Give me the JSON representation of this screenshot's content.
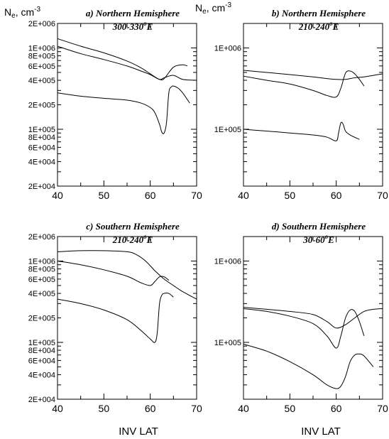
{
  "figure": {
    "ylabel_left": {
      "main": "N",
      "sub": "e",
      "tail": ", cm",
      "sup": "-3"
    },
    "ylabel_right": {
      "main": "N",
      "sub": "e",
      "tail": ", cm",
      "sup": "-3"
    },
    "xlabel_bottom_left": "INV LAT",
    "xlabel_bottom_right": "INV LAT"
  },
  "chart_data": [
    {
      "type": "line",
      "title": {
        "pre": "a) Northern Hemisphere",
        "line2_pre": "300-330",
        "line2_sup": "o",
        "line2_post": "E"
      },
      "xlabel": "",
      "ylabel": "",
      "xlim": [
        40,
        70
      ],
      "ylim": [
        20000,
        2000000
      ],
      "log_y": true,
      "x_ticks": [
        "40",
        "50",
        "60",
        "70"
      ],
      "y_ticks": [
        {
          "v": 2000000,
          "label": "2E+006"
        },
        {
          "v": 1000000,
          "label": "1E+006"
        },
        {
          "v": 800000,
          "label": "8E+005"
        },
        {
          "v": 600000,
          "label": "6E+005"
        },
        {
          "v": 400000,
          "label": "4E+005"
        },
        {
          "v": 200000,
          "label": "2E+005"
        },
        {
          "v": 100000,
          "label": "1E+005"
        },
        {
          "v": 80000,
          "label": "8E+004"
        },
        {
          "v": 60000,
          "label": "6E+004"
        },
        {
          "v": 40000,
          "label": "4E+004"
        },
        {
          "v": 20000,
          "label": "2E+004"
        }
      ],
      "series": [
        {
          "x": [
            40,
            45,
            50,
            55,
            58,
            60,
            62,
            63,
            65,
            67,
            68
          ],
          "y": [
            1300000,
            1050000,
            870000,
            690000,
            570000,
            480000,
            410000,
            420000,
            580000,
            620000,
            600000
          ]
        },
        {
          "x": [
            40,
            45,
            50,
            55,
            58,
            60,
            62,
            63,
            65,
            67,
            70
          ],
          "y": [
            1050000,
            850000,
            720000,
            600000,
            520000,
            470000,
            410000,
            430000,
            460000,
            410000,
            400000
          ]
        },
        {
          "x": [
            40,
            45,
            50,
            55,
            58,
            60,
            61,
            62,
            62.5,
            63,
            63.5,
            64,
            64.5,
            65,
            66,
            67,
            68.5
          ],
          "y": [
            280000,
            255000,
            240000,
            228000,
            210000,
            185000,
            160000,
            115000,
            92000,
            90000,
            120000,
            280000,
            330000,
            340000,
            320000,
            280000,
            210000
          ]
        }
      ]
    },
    {
      "type": "line",
      "title": {
        "pre": "b) Northern Hemisphere",
        "line2_pre": "210-240",
        "line2_sup": "o",
        "line2_post": "E"
      },
      "xlabel": "",
      "ylabel": "",
      "xlim": [
        40,
        70
      ],
      "ylim": [
        20000,
        2000000
      ],
      "log_y": true,
      "x_ticks": [
        "40",
        "50",
        "60",
        "70"
      ],
      "y_ticks": [
        {
          "v": 1000000,
          "label": "1E+006"
        },
        {
          "v": 100000,
          "label": "1E+005"
        }
      ],
      "series": [
        {
          "x": [
            40,
            45,
            50,
            55,
            58,
            60,
            62,
            64,
            66,
            68,
            70
          ],
          "y": [
            530000,
            500000,
            470000,
            440000,
            420000,
            410000,
            410000,
            430000,
            440000,
            460000,
            480000
          ]
        },
        {
          "x": [
            40,
            45,
            50,
            55,
            58,
            60,
            61,
            62,
            63,
            64,
            65,
            66
          ],
          "y": [
            450000,
            400000,
            360000,
            300000,
            260000,
            250000,
            320000,
            490000,
            520000,
            480000,
            410000,
            340000
          ]
        },
        {
          "x": [
            40,
            45,
            50,
            55,
            58,
            60,
            60.5,
            61,
            61.5,
            62,
            63,
            65
          ],
          "y": [
            100000,
            95000,
            90000,
            85000,
            80000,
            72000,
            90000,
            120000,
            115000,
            95000,
            85000,
            75000
          ]
        }
      ]
    },
    {
      "type": "line",
      "title": {
        "pre": "c) Southern Hemisphere",
        "line2_pre": "210-240",
        "line2_sup": "o",
        "line2_post": "E"
      },
      "xlabel": "",
      "ylabel": "",
      "xlim": [
        40,
        70
      ],
      "ylim": [
        20000,
        2000000
      ],
      "log_y": true,
      "x_ticks": [
        "40",
        "50",
        "60",
        "70"
      ],
      "y_ticks": [
        {
          "v": 2000000,
          "label": "2E+006"
        },
        {
          "v": 1000000,
          "label": "1E+006"
        },
        {
          "v": 800000,
          "label": "8E+005"
        },
        {
          "v": 600000,
          "label": "6E+005"
        },
        {
          "v": 400000,
          "label": "4E+005"
        },
        {
          "v": 200000,
          "label": "2E+005"
        },
        {
          "v": 100000,
          "label": "1E+005"
        },
        {
          "v": 80000,
          "label": "8E+004"
        },
        {
          "v": 60000,
          "label": "6E+004"
        },
        {
          "v": 40000,
          "label": "4E+004"
        },
        {
          "v": 20000,
          "label": "2E+004"
        }
      ],
      "series": [
        {
          "x": [
            40,
            45,
            50,
            55,
            57,
            59,
            61,
            63,
            65,
            67,
            70
          ],
          "y": [
            1300000,
            1340000,
            1340000,
            1300000,
            1200000,
            1000000,
            760000,
            600000,
            500000,
            420000,
            340000
          ]
        },
        {
          "x": [
            40,
            45,
            50,
            55,
            58,
            60,
            61,
            62,
            63,
            64
          ],
          "y": [
            1000000,
            900000,
            780000,
            650000,
            540000,
            500000,
            560000,
            640000,
            640000,
            580000
          ]
        },
        {
          "x": [
            40,
            45,
            50,
            55,
            58,
            60,
            61,
            61.5,
            62,
            62.5,
            63,
            64,
            65
          ],
          "y": [
            340000,
            300000,
            250000,
            190000,
            140000,
            110000,
            100000,
            130000,
            300000,
            380000,
            400000,
            400000,
            360000
          ]
        }
      ]
    },
    {
      "type": "line",
      "title": {
        "pre": "d) Southern Hemisphere",
        "line2_pre": "30-60",
        "line2_sup": "o",
        "line2_post": "E"
      },
      "xlabel": "",
      "ylabel": "",
      "xlim": [
        40,
        70
      ],
      "ylim": [
        20000,
        2000000
      ],
      "log_y": true,
      "x_ticks": [
        "40",
        "50",
        "60",
        "70"
      ],
      "y_ticks": [
        {
          "v": 1000000,
          "label": "1E+006"
        },
        {
          "v": 100000,
          "label": "1E+005"
        }
      ],
      "series": [
        {
          "x": [
            40,
            45,
            50,
            55,
            58,
            60,
            62,
            64,
            66,
            68,
            70
          ],
          "y": [
            270000,
            255000,
            240000,
            220000,
            180000,
            150000,
            165000,
            200000,
            240000,
            255000,
            260000
          ]
        },
        {
          "x": [
            40,
            45,
            50,
            55,
            58,
            60,
            61,
            62,
            63,
            64,
            65,
            66
          ],
          "y": [
            260000,
            240000,
            210000,
            170000,
            120000,
            85000,
            120000,
            200000,
            250000,
            240000,
            180000,
            120000
          ]
        },
        {
          "x": [
            40,
            45,
            50,
            55,
            58,
            60,
            61,
            62,
            63,
            64,
            65,
            66,
            68
          ],
          "y": [
            95000,
            78000,
            58000,
            40000,
            30000,
            27000,
            29000,
            38000,
            58000,
            70000,
            72000,
            68000,
            50000
          ]
        }
      ]
    }
  ]
}
